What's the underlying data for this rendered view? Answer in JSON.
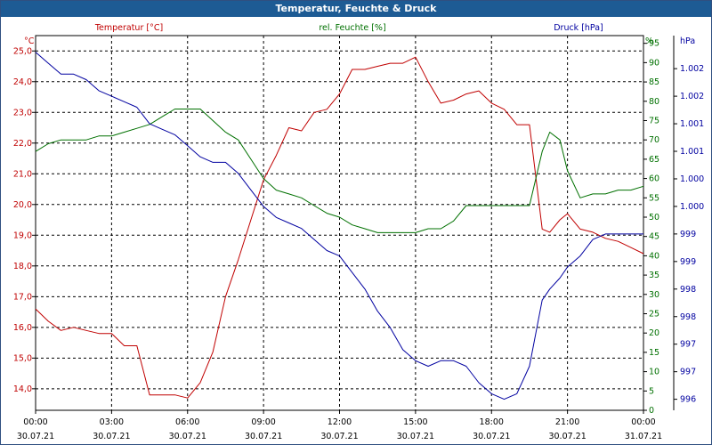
{
  "window": {
    "title": "Temperatur, Feuchte & Druck"
  },
  "legend": {
    "temperature": "Temperatur [°C]",
    "humidity": "rel. Feuchte [%]",
    "pressure": "Druck [hPa]"
  },
  "colors": {
    "temperature": "#c00000",
    "humidity": "#007000",
    "pressure": "#0000a0",
    "title_bar": "#1d5b94",
    "axis": "#000000",
    "grid": "#000000"
  },
  "chart_data": {
    "type": "line",
    "title": "Temperatur, Feuchte & Druck",
    "grid": true,
    "x_ticks": [
      {
        "time": "00:00",
        "date": "30.07.21"
      },
      {
        "time": "03:00",
        "date": "30.07.21"
      },
      {
        "time": "06:00",
        "date": "30.07.21"
      },
      {
        "time": "09:00",
        "date": "30.07.21"
      },
      {
        "time": "12:00",
        "date": "30.07.21"
      },
      {
        "time": "15:00",
        "date": "30.07.21"
      },
      {
        "time": "18:00",
        "date": "30.07.21"
      },
      {
        "time": "21:00",
        "date": "30.07.21"
      },
      {
        "time": "00:00",
        "date": "31.07.21"
      }
    ],
    "x_range_hours": [
      0,
      24
    ],
    "axes": {
      "temperature": {
        "unit": "°C",
        "ylim": [
          13.3,
          25.5
        ],
        "ticks": [
          "14,0",
          "15,0",
          "16,0",
          "17,0",
          "18,0",
          "19,0",
          "20,0",
          "21,0",
          "22,0",
          "23,0",
          "24,0",
          "25,0"
        ],
        "tick_values": [
          14,
          15,
          16,
          17,
          18,
          19,
          20,
          21,
          22,
          23,
          24,
          25
        ]
      },
      "humidity": {
        "unit": "%",
        "ylim": [
          0,
          97
        ],
        "ticks": [
          "0",
          "5",
          "10",
          "15",
          "20",
          "25",
          "30",
          "35",
          "40",
          "45",
          "50",
          "55",
          "60",
          "65",
          "70",
          "75",
          "80",
          "85",
          "90",
          "95"
        ],
        "tick_values": [
          0,
          5,
          10,
          15,
          20,
          25,
          30,
          35,
          40,
          45,
          50,
          55,
          60,
          65,
          70,
          75,
          80,
          85,
          90,
          95
        ]
      },
      "pressure": {
        "unit": "hPa",
        "ylim": [
          995.8,
          1002.6
        ],
        "ticks": [
          "996",
          "997",
          "997",
          "998",
          "998",
          "999",
          "999",
          "1.000",
          "1.000",
          "1.001",
          "1.001",
          "1.002",
          "1.002"
        ],
        "tick_values": [
          996,
          996.5,
          997,
          997.5,
          998,
          998.5,
          999,
          999.5,
          1000,
          1000.5,
          1001,
          1001.5,
          1002
        ]
      }
    },
    "series": [
      {
        "name": "Temperatur [°C]",
        "axis": "temperature",
        "hours": [
          0,
          0.5,
          1,
          1.5,
          2,
          2.5,
          3,
          3.5,
          4,
          4.5,
          5,
          5.5,
          6,
          6.5,
          7,
          7.5,
          8,
          8.5,
          9,
          9.5,
          10,
          10.5,
          11,
          11.5,
          12,
          12.5,
          13,
          13.5,
          14,
          14.5,
          15,
          15.5,
          16,
          16.5,
          17,
          17.5,
          18,
          18.5,
          19,
          19.5,
          20,
          20.3,
          20.7,
          21,
          21.5,
          22,
          22.5,
          23,
          23.5,
          24
        ],
        "values": [
          16.6,
          16.2,
          15.9,
          16.0,
          15.9,
          15.8,
          15.8,
          15.4,
          15.4,
          13.8,
          13.8,
          13.8,
          13.7,
          14.2,
          15.2,
          17.0,
          18.2,
          19.5,
          20.8,
          21.6,
          22.5,
          22.4,
          23.0,
          23.1,
          23.6,
          24.4,
          24.4,
          24.5,
          24.6,
          24.6,
          24.8,
          24.0,
          23.3,
          23.4,
          23.6,
          23.7,
          23.3,
          23.1,
          22.6,
          22.6,
          19.2,
          19.1,
          19.5,
          19.7,
          19.2,
          19.1,
          18.9,
          18.8,
          18.6,
          18.4
        ]
      },
      {
        "name": "rel. Feuchte [%]",
        "axis": "humidity",
        "hours": [
          0,
          0.5,
          1,
          1.5,
          2,
          2.5,
          3,
          3.5,
          4,
          4.5,
          5,
          5.5,
          6,
          6.5,
          7,
          7.5,
          8,
          8.5,
          9,
          9.5,
          10,
          10.5,
          11,
          11.5,
          12,
          12.5,
          13,
          13.5,
          14,
          14.5,
          15,
          15.5,
          16,
          16.5,
          17,
          17.5,
          18,
          18.5,
          19,
          19.5,
          20,
          20.3,
          20.7,
          21,
          21.5,
          22,
          22.5,
          23,
          23.5,
          24
        ],
        "values": [
          67,
          69,
          70,
          70,
          70,
          71,
          71,
          72,
          73,
          74,
          76,
          78,
          78,
          78,
          75,
          72,
          70,
          65,
          60,
          57,
          56,
          55,
          53,
          51,
          50,
          48,
          47,
          46,
          46,
          46,
          46,
          47,
          47,
          49,
          53,
          53,
          53,
          53,
          53,
          53,
          67,
          72,
          70,
          62,
          55,
          56,
          56,
          57,
          57,
          58
        ]
      },
      {
        "name": "Druck [hPa]",
        "axis": "pressure",
        "hours": [
          0,
          0.5,
          1,
          1.5,
          2,
          2.5,
          3,
          3.5,
          4,
          4.5,
          5,
          5.5,
          6,
          6.5,
          7,
          7.5,
          8,
          8.5,
          9,
          9.5,
          10,
          10.5,
          11,
          11.5,
          12,
          12.5,
          13,
          13.5,
          14,
          14.5,
          15,
          15.5,
          16,
          16.5,
          17,
          17.5,
          18,
          18.5,
          19,
          19.5,
          20,
          20.3,
          20.7,
          21,
          21.5,
          22,
          22.5,
          23,
          23.5,
          24
        ],
        "values": [
          1002.3,
          1002.1,
          1001.9,
          1001.9,
          1001.8,
          1001.6,
          1001.5,
          1001.4,
          1001.3,
          1001.0,
          1000.9,
          1000.8,
          1000.6,
          1000.4,
          1000.3,
          1000.3,
          1000.1,
          999.8,
          999.5,
          999.3,
          999.2,
          999.1,
          998.9,
          998.7,
          998.6,
          998.3,
          998.0,
          997.6,
          997.3,
          996.9,
          996.7,
          996.6,
          996.7,
          996.7,
          996.6,
          996.3,
          996.1,
          996.0,
          996.1,
          996.6,
          997.8,
          998.0,
          998.2,
          998.4,
          998.6,
          998.9,
          999.0,
          999.0,
          999.0,
          999.0
        ]
      }
    ]
  }
}
